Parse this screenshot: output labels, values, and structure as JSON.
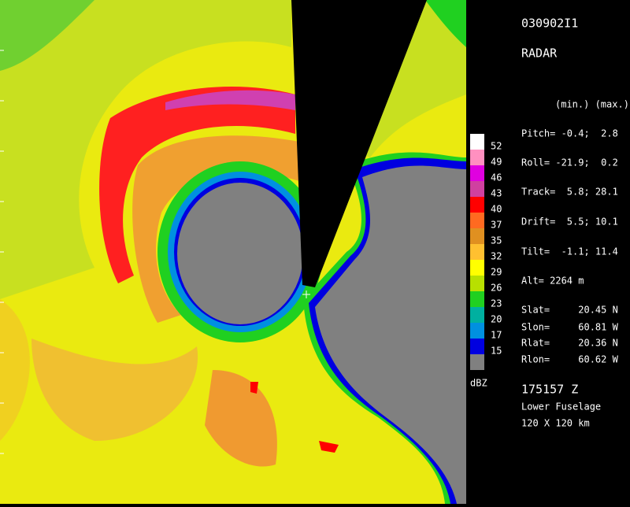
{
  "header": {
    "id": "030902I1",
    "product": "RADAR"
  },
  "stats": {
    "heading": "(min.) (max.)",
    "lines": [
      "Pitch= -0.4;  2.8",
      "Roll= -21.9;  0.2",
      "Track=  5.8; 28.1",
      "Drift=  5.5; 10.1",
      "Tilt=  -1.1; 11.4",
      "Alt= 2264 m"
    ],
    "positions": [
      "Slat=     20.45 N",
      "Slon=     60.81 W",
      "Rlat=     20.36 N",
      "Rlon=     60.62 W"
    ]
  },
  "colorbar": {
    "unit": "dBZ",
    "levels": [
      {
        "label": 52,
        "color": "#ffffff"
      },
      {
        "label": 49,
        "color": "#ff90c0"
      },
      {
        "label": 46,
        "color": "#e000e0"
      },
      {
        "label": 43,
        "color": "#d040a0"
      },
      {
        "label": 40,
        "color": "#ff0000"
      },
      {
        "label": 37,
        "color": "#ff6a20"
      },
      {
        "label": 35,
        "color": "#e09020"
      },
      {
        "label": 32,
        "color": "#ffc030"
      },
      {
        "label": 29,
        "color": "#ffff00"
      },
      {
        "label": 26,
        "color": "#b8e000"
      },
      {
        "label": 23,
        "color": "#20d020"
      },
      {
        "label": 20,
        "color": "#00b0a0"
      },
      {
        "label": 17,
        "color": "#0090e0"
      },
      {
        "label": 15,
        "color": "#0000e0"
      }
    ],
    "below_color": "#808080"
  },
  "footer": {
    "time": "175157 Z",
    "antenna": "Lower Fuselage",
    "domain": "120 X 120 km"
  }
}
